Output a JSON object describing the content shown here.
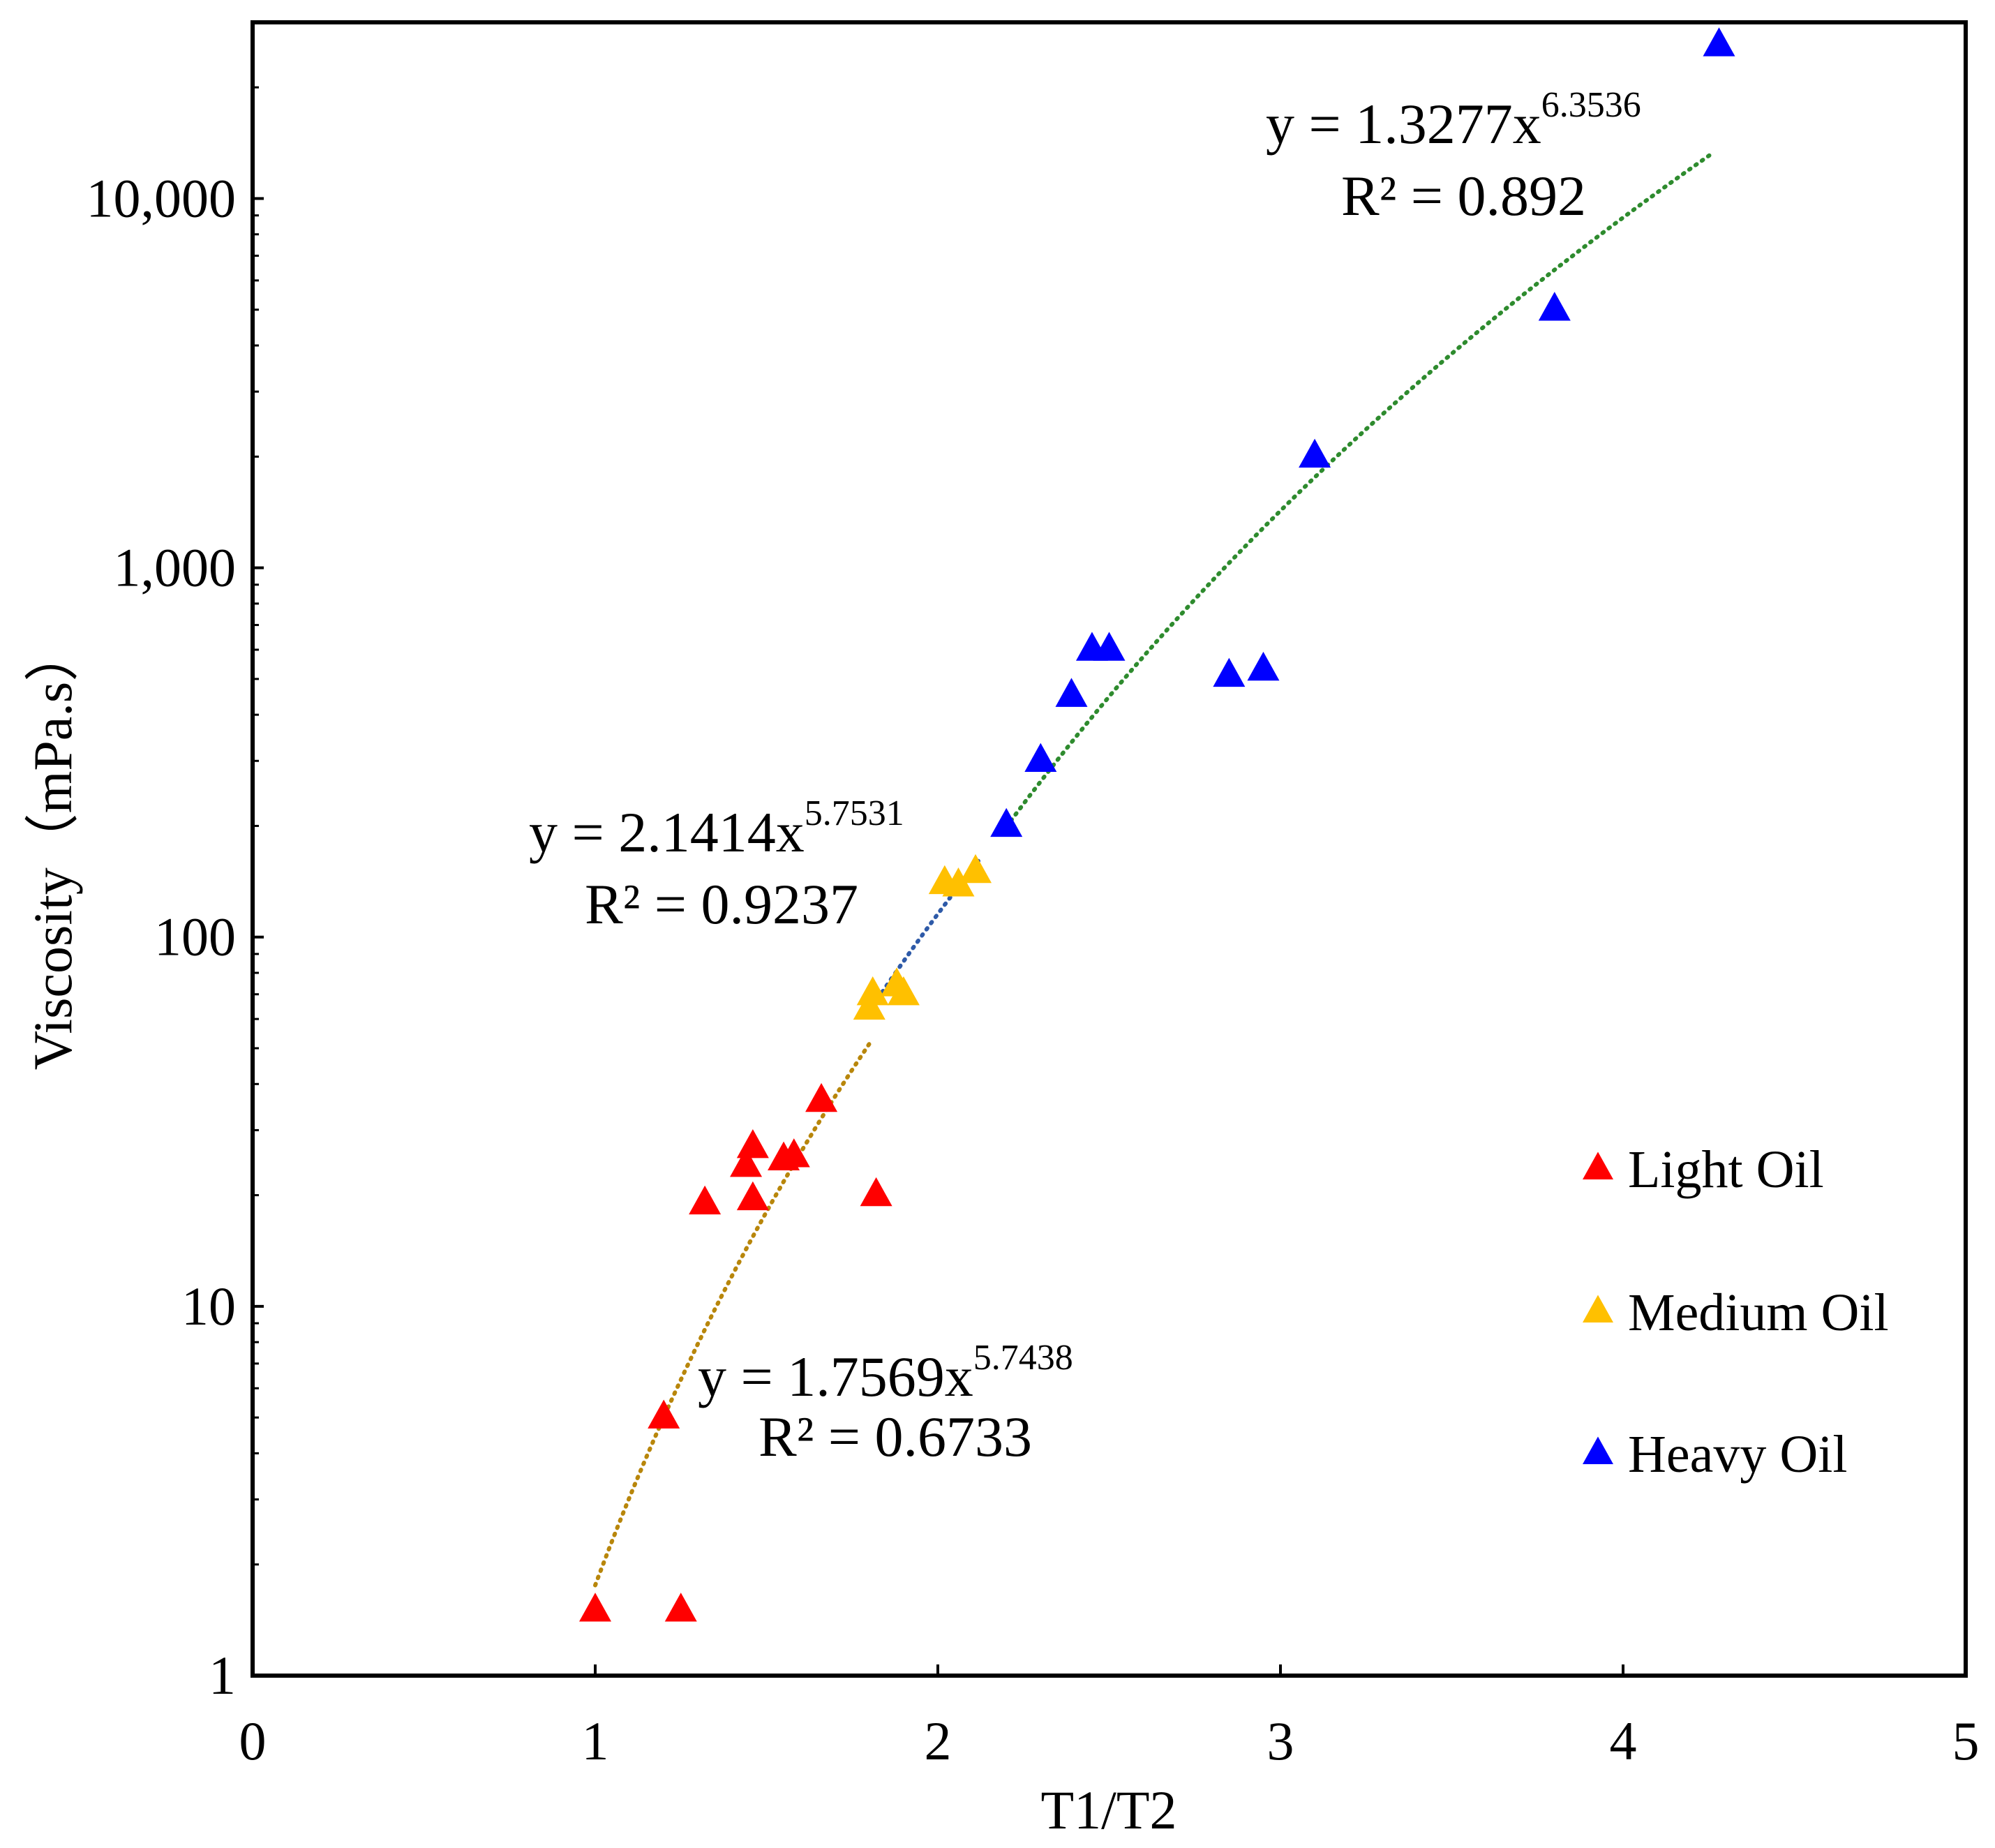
{
  "chart_data": {
    "type": "scatter",
    "xlabel": "T1/T2",
    "ylabel": "Viscosity（mPa.s）",
    "xlim": [
      0,
      5
    ],
    "ylim": [
      1,
      30000
    ],
    "yscale": "log",
    "grid": false,
    "x_ticks": [
      "0",
      "1",
      "2",
      "3",
      "4",
      "5"
    ],
    "y_ticks": [
      "1",
      "10",
      "100",
      "1,000",
      "10,000"
    ],
    "legend_position": "bottom-right",
    "series": [
      {
        "name": "Light Oil",
        "color": "#ff0000",
        "marker": "triangle",
        "points": [
          {
            "x": 1.0,
            "y": 1.5
          },
          {
            "x": 1.25,
            "y": 1.5
          },
          {
            "x": 1.2,
            "y": 5
          },
          {
            "x": 1.32,
            "y": 19
          },
          {
            "x": 1.44,
            "y": 24
          },
          {
            "x": 1.46,
            "y": 27
          },
          {
            "x": 1.46,
            "y": 19.5
          },
          {
            "x": 1.55,
            "y": 25
          },
          {
            "x": 1.58,
            "y": 25.5
          },
          {
            "x": 1.66,
            "y": 36
          },
          {
            "x": 1.82,
            "y": 20
          }
        ],
        "trendline": {
          "equation_prefix": "y = 1.7569x",
          "exponent": "5.7438",
          "r2_text": "R² = 0.6733",
          "a": 1.7569,
          "b": 5.7438,
          "x_range": [
            1.0,
            1.8
          ],
          "color": "#b8860b"
        }
      },
      {
        "name": "Medium Oil",
        "color": "#ffc000",
        "marker": "triangle",
        "points": [
          {
            "x": 1.8,
            "y": 64
          },
          {
            "x": 1.81,
            "y": 70
          },
          {
            "x": 1.88,
            "y": 74
          },
          {
            "x": 1.9,
            "y": 70
          },
          {
            "x": 2.02,
            "y": 140
          },
          {
            "x": 2.06,
            "y": 138
          },
          {
            "x": 2.11,
            "y": 150
          }
        ],
        "trendline": {
          "equation_prefix": "y = 2.1414x",
          "exponent": "5.7531",
          "r2_text": "R² = 0.9237",
          "a": 2.1414,
          "b": 5.7531,
          "x_range": [
            1.8,
            2.12
          ],
          "color": "#2e5aa8"
        }
      },
      {
        "name": "Heavy Oil",
        "color": "#0000ff",
        "marker": "triangle",
        "points": [
          {
            "x": 2.2,
            "y": 200
          },
          {
            "x": 2.3,
            "y": 300
          },
          {
            "x": 2.39,
            "y": 450
          },
          {
            "x": 2.45,
            "y": 600
          },
          {
            "x": 2.5,
            "y": 600
          },
          {
            "x": 2.85,
            "y": 510
          },
          {
            "x": 2.95,
            "y": 530
          },
          {
            "x": 3.1,
            "y": 2000
          },
          {
            "x": 3.8,
            "y": 5000
          },
          {
            "x": 4.28,
            "y": 26000
          }
        ],
        "trendline": {
          "equation_prefix": "y = 1.3277x",
          "exponent": "6.3536",
          "r2_text": "R² = 0.892",
          "a": 1.3277,
          "b": 6.3536,
          "x_range": [
            2.2,
            4.26
          ],
          "color": "#2e8b2e"
        }
      }
    ]
  }
}
